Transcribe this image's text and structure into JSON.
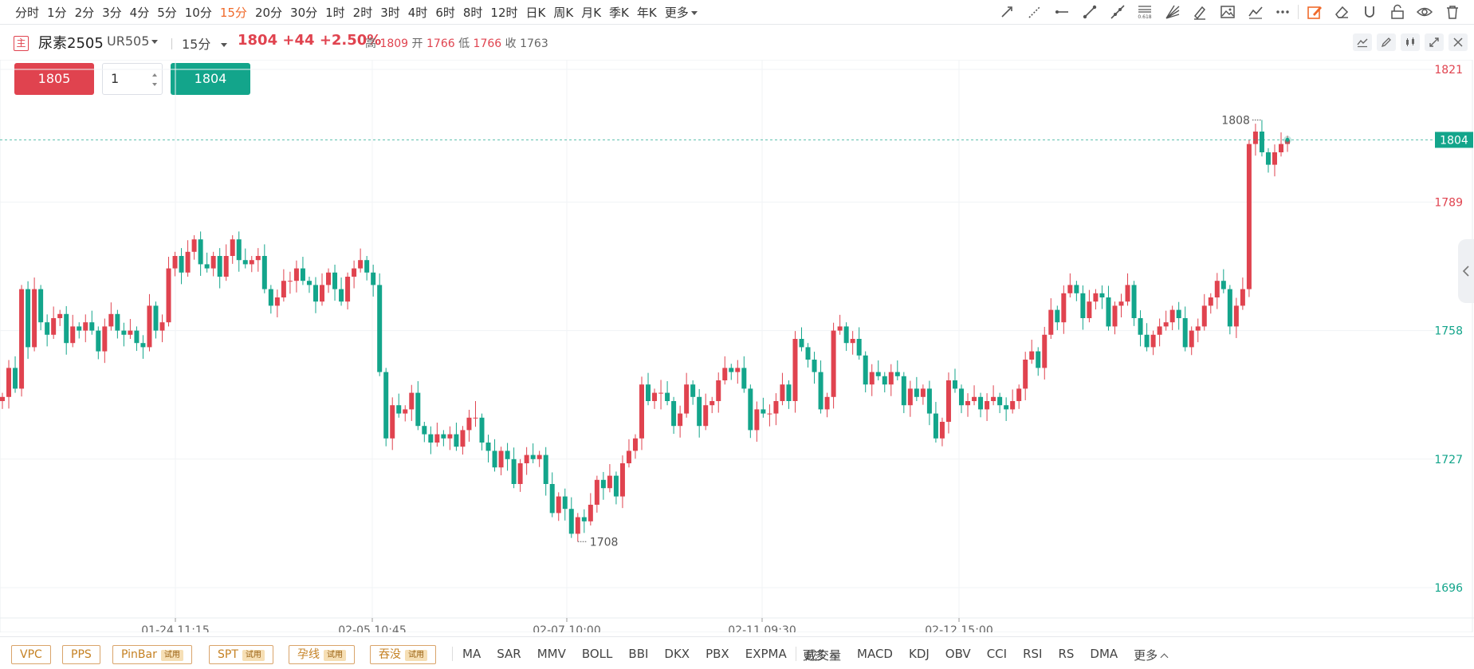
{
  "periods": {
    "items": [
      "分时",
      "1分",
      "2分",
      "3分",
      "4分",
      "5分",
      "10分",
      "15分",
      "20分",
      "30分",
      "1时",
      "2时",
      "3时",
      "4时",
      "6时",
      "8时",
      "12时",
      "日K",
      "周K",
      "月K",
      "季K",
      "年K"
    ],
    "active": "15分",
    "more_label": "更多"
  },
  "toolbar": {
    "icons": [
      "trend-line-icon",
      "ray-line-icon",
      "horizontal-line-icon",
      "segment-line-icon",
      "extended-line-icon",
      "fibonacci-icon",
      "gann-fan-icon",
      "brush-icon",
      "image-icon",
      "polyline-icon",
      "more-dots-icon",
      "draw-mode-icon",
      "eraser-icon",
      "magnet-icon",
      "unlock-icon",
      "eye-icon",
      "trash-icon"
    ],
    "fib_label": "0.618"
  },
  "header": {
    "main_badge": "主",
    "symbol_name": "尿素2505",
    "symbol_code": "UR505",
    "period": "15分",
    "last": "1804",
    "change": "+44",
    "change_pct": "+2.50%",
    "high_label": "高",
    "high": "1809",
    "open_label": "开",
    "open": "1766",
    "low_label": "低",
    "low": "1766",
    "close_label": "收",
    "close": "1763"
  },
  "trade": {
    "buy_price": "1805",
    "quantity": "1",
    "sell_price": "1804"
  },
  "colors": {
    "up": "#e0434f",
    "down": "#13a58b",
    "accent": "#f06a2b"
  },
  "chart_data": {
    "type": "candlestick",
    "yaxis_ticks": [
      1821,
      1789,
      1758,
      1727,
      1696
    ],
    "ylim": [
      1696,
      1821
    ],
    "xaxis_ticks": [
      "01-24 11:15",
      "02-05 10:45",
      "02-07 10:00",
      "02-11 09:30",
      "02-12 15:00"
    ],
    "last_price_label": "1804",
    "max_label": "1808",
    "min_label": "1708",
    "grid": true,
    "closes": [
      1742,
      1749,
      1744,
      1768,
      1754,
      1768,
      1760,
      1757,
      1761,
      1762,
      1755,
      1759,
      1758,
      1760,
      1758,
      1753,
      1759,
      1762,
      1758,
      1757,
      1758,
      1755,
      1754,
      1764,
      1758,
      1760,
      1773,
      1776,
      1772,
      1777,
      1780,
      1774,
      1773,
      1776,
      1771,
      1776,
      1780,
      1775,
      1774,
      1775,
      1776,
      1768,
      1764,
      1766,
      1770,
      1770,
      1773,
      1770,
      1769,
      1765,
      1769,
      1772,
      1768,
      1765,
      1771,
      1773,
      1775,
      1772,
      1769,
      1748,
      1732,
      1740,
      1738,
      1739,
      1743,
      1735,
      1733,
      1731,
      1733,
      1732,
      1733,
      1730,
      1734,
      1737,
      1737,
      1731,
      1729,
      1725,
      1729,
      1727,
      1721,
      1726,
      1728,
      1727,
      1728,
      1721,
      1714,
      1718,
      1715,
      1709,
      1713,
      1712,
      1716,
      1722,
      1720,
      1723,
      1718,
      1726,
      1729,
      1732,
      1745,
      1741,
      1743,
      1743,
      1741,
      1735,
      1738,
      1745,
      1742,
      1735,
      1740,
      1741,
      1746,
      1749,
      1748,
      1749,
      1744,
      1734,
      1739,
      1738,
      1738,
      1741,
      1745,
      1741,
      1756,
      1754,
      1751,
      1748,
      1739,
      1742,
      1758,
      1759,
      1755,
      1756,
      1752,
      1745,
      1748,
      1747,
      1745,
      1748,
      1747,
      1740,
      1744,
      1742,
      1744,
      1738,
      1732,
      1736,
      1746,
      1744,
      1740,
      1741,
      1742,
      1739,
      1741,
      1742,
      1740,
      1739,
      1741,
      1744,
      1751,
      1753,
      1749,
      1757,
      1763,
      1760,
      1767,
      1769,
      1767,
      1761,
      1765,
      1767,
      1766,
      1759,
      1764,
      1765,
      1769,
      1761,
      1757,
      1754,
      1757,
      1759,
      1760,
      1763,
      1761,
      1754,
      1758,
      1759,
      1764,
      1766,
      1770,
      1768,
      1759,
      1764,
      1768,
      1803,
      1806,
      1801,
      1798,
      1801,
      1803,
      1804
    ]
  }
}
